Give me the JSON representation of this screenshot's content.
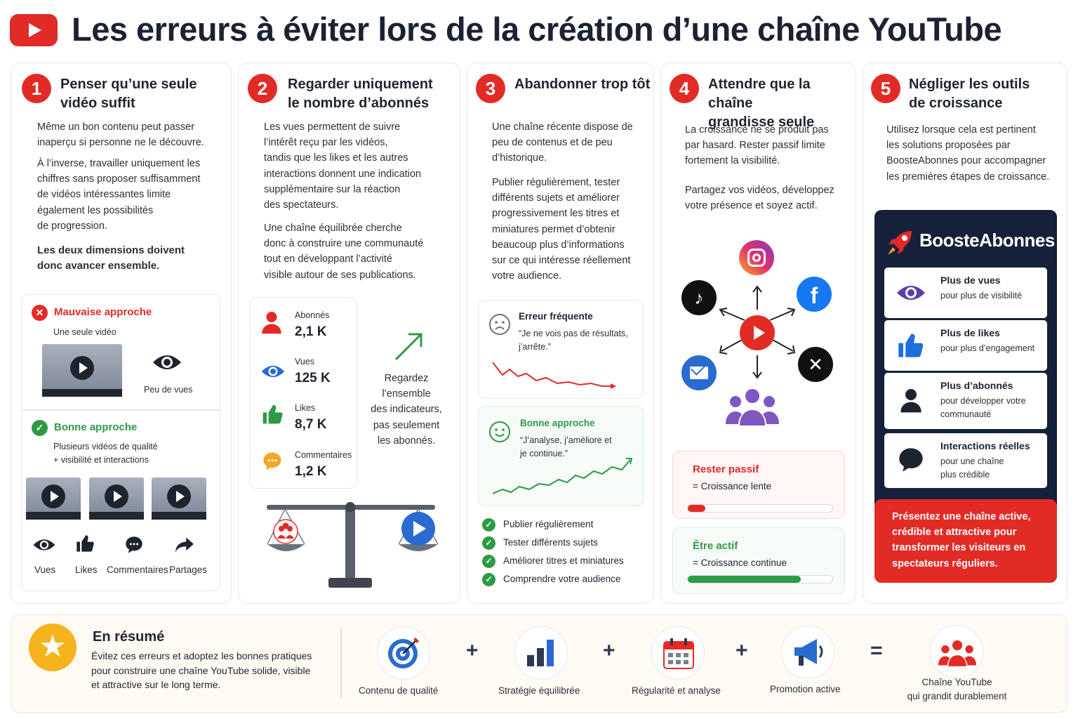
{
  "header": {
    "title": "Les erreurs à éviter lors de la création d’une chaîne YouTube"
  },
  "colors": {
    "accent_red": "#e32b26",
    "accent_green": "#2e9a45",
    "navy": "#15213a",
    "star": "#f5b31c"
  },
  "cards": [
    {
      "number": "1",
      "title_l1": "Penser qu’une seule",
      "title_l2": "vidéo suffit",
      "p1": [
        "Même un bon contenu peut passer",
        "inaperçu si personne ne le découvre."
      ],
      "p2": [
        "À l’inverse, travailler uniquement les",
        "chiffres sans proposer suffisamment",
        "de vidéos intéressantes limite",
        "également les possibilités",
        "de progression."
      ],
      "p3": [
        "Les deux dimensions doivent",
        "donc avancer ensemble."
      ],
      "bad": {
        "title": "Mauvaise approche",
        "caption": "Une seule vidéo",
        "result": "Peu de vues"
      },
      "good": {
        "title": "Bonne approche",
        "caption_l1": "Plusieurs vidéos de qualité",
        "caption_l2": "+ visibilité et interactions"
      },
      "actions": [
        "Vues",
        "Likes",
        "Commentaires",
        "Partages"
      ]
    },
    {
      "number": "2",
      "title_l1": "Regarder uniquement",
      "title_l2": "le nombre d’abonnés",
      "p1": [
        "Les vues permettent de suivre",
        "l’intérêt reçu par les vidéos,",
        "tandis que les likes et les autres",
        "interactions donnent une indication",
        "supplémentaire sur la réaction",
        "des spectateurs."
      ],
      "p2": [
        "Une chaîne équilibrée cherche",
        "donc à construire une communauté",
        "tout en développant l’activité",
        "visible autour de ses publications."
      ],
      "stats": [
        {
          "label": "Abonnés",
          "value": "2,1 K"
        },
        {
          "label": "Vues",
          "value": "125 K"
        },
        {
          "label": "Likes",
          "value": "8,7 K"
        },
        {
          "label": "Commentaires",
          "value": "1,2 K"
        }
      ],
      "note": [
        "Regardez",
        "l’ensemble",
        "des indicateurs,",
        "pas seulement",
        "les abonnés."
      ]
    },
    {
      "number": "3",
      "title_l1": "Abandonner trop tôt",
      "p1": [
        "Une chaîne récente dispose de",
        "peu de contenus et de peu",
        "d’historique."
      ],
      "p2": [
        "Publier régulièrement, tester",
        "différents sujets et améliorer",
        "progressivement les titres et",
        "miniatures permet d’obtenir",
        "beaucoup plus d’informations",
        "sur ce qui intéresse réellement",
        "votre audience."
      ],
      "error": {
        "title": "Erreur fréquente",
        "quote_l1": "“Je ne vois pas de résultats,",
        "quote_l2": "j’arrête.”"
      },
      "good": {
        "title": "Bonne approche",
        "quote_l1": "“J’analyse, j’améliore et",
        "quote_l2": "je continue.”"
      },
      "checklist": [
        "Publier régulièrement",
        "Tester différents sujets",
        "Améliorer titres et miniatures",
        "Comprendre votre audience"
      ]
    },
    {
      "number": "4",
      "title_l1": "Attendre que la chaîne",
      "title_l2": "grandisse seule",
      "p1": [
        "La croissance ne se produit pas",
        "par hasard. Rester passif limite",
        "fortement la visibilité."
      ],
      "p2": [
        "Partagez vos vidéos, développez",
        "votre présence et soyez actif."
      ],
      "passive": {
        "title": "Rester passif",
        "desc": "= Croissance lente",
        "level": 0.12
      },
      "active": {
        "title": "Être actif",
        "desc": "= Croissance continue",
        "level": 0.78
      }
    },
    {
      "number": "5",
      "title_l1": "Négliger les outils",
      "title_l2": "de croissance",
      "p1": [
        "Utilisez lorsque cela est pertinent",
        "les solutions proposées par",
        "BoosteAbonnes pour accompagner",
        "les premières étapes de croissance."
      ],
      "brand": "BoosteAbonnes",
      "items": [
        {
          "t1": "Plus de vues",
          "t2": [
            "pour plus de visibilité"
          ]
        },
        {
          "t1": "Plus de likes",
          "t2": [
            "pour plus d’engagement"
          ]
        },
        {
          "t1": "Plus d’abonnés",
          "t2": [
            "pour développer votre",
            "communauté"
          ]
        },
        {
          "t1": "Interactions réelles",
          "t2": [
            "pour une chaîne",
            "plus crédible"
          ]
        }
      ],
      "cta": [
        "Présentez une chaîne active,",
        "crédible et attractive pour",
        "transformer les visiteurs en",
        "spectateurs réguliers."
      ]
    }
  ],
  "summary": {
    "title": "En résumé",
    "text": [
      "Évitez ces erreurs et adoptez les bonnes pratiques",
      "pour construire une chaîne YouTube solide, visible",
      "et attractive sur le long terme."
    ],
    "formula": [
      "Contenu de qualité",
      "Stratégie équilibrée",
      "Régularité et analyse",
      "Promotion active"
    ],
    "operators": [
      "+",
      "+",
      "+",
      "="
    ],
    "result_l1": "Chaîne YouTube",
    "result_l2": "qui grandit durablement"
  }
}
